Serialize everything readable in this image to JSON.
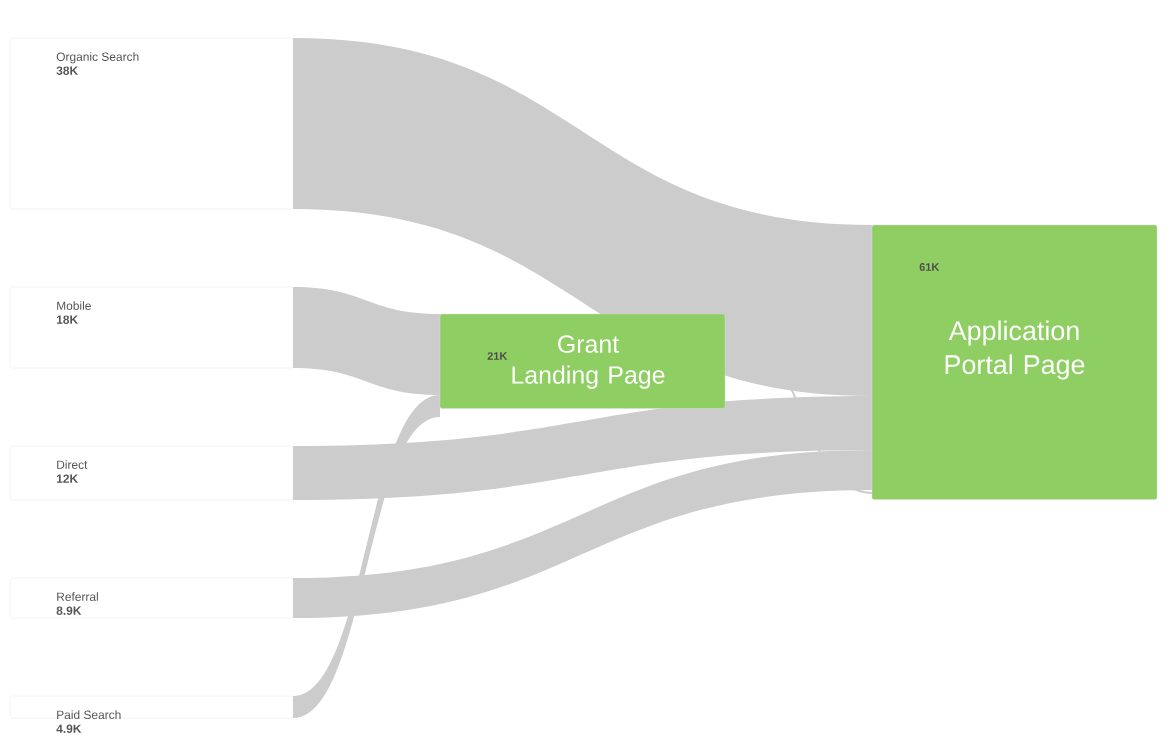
{
  "chart_data": {
    "type": "other",
    "categories": [
      "Organic Search",
      "Mobile",
      "Direct",
      "Referral",
      "Paid Search",
      "Grant Landing Page",
      "Application Portal Page"
    ],
    "values": [
      38,
      18,
      12,
      8.9,
      4.9,
      21,
      61
    ],
    "value_labels": [
      "38K",
      "18K",
      "12K",
      "8.9K",
      "4.9K",
      "21K",
      "61K"
    ],
    "colors": [
      "#ffffff",
      "#ffffff",
      "#ffffff",
      "#ffffff",
      "#ffffff",
      "#8fce62",
      "#8fce62"
    ]
  }
}
